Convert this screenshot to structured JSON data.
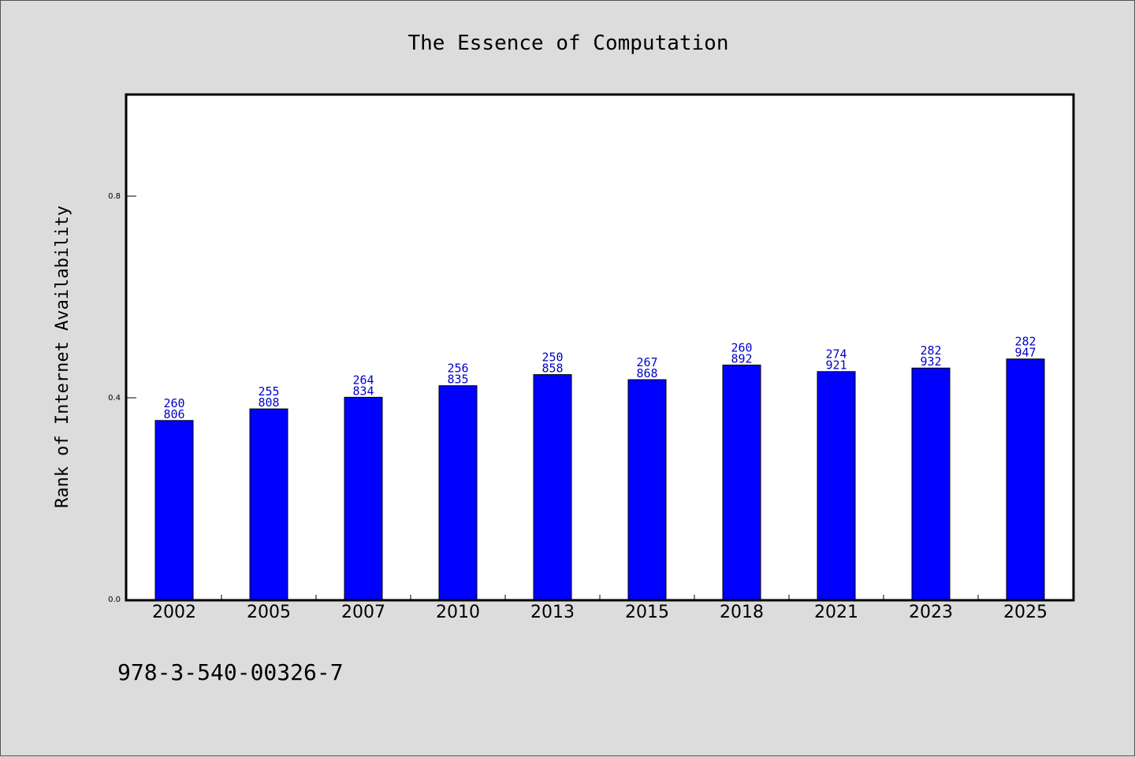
{
  "chart_data": {
    "type": "bar",
    "title": "The Essence of Computation",
    "xlabel": "",
    "ylabel": "Rank of Internet Availability",
    "categories": [
      "2002",
      "2005",
      "2007",
      "2010",
      "2013",
      "2015",
      "2018",
      "2021",
      "2023",
      "2025"
    ],
    "series": [
      {
        "values": [
          0.355,
          0.378,
          0.401,
          0.424,
          0.446,
          0.436,
          0.465,
          0.452,
          0.459,
          0.477
        ]
      }
    ],
    "data_labels": [
      [
        "260",
        "806"
      ],
      [
        "255",
        "808"
      ],
      [
        "264",
        "834"
      ],
      [
        "256",
        "835"
      ],
      [
        "250",
        "858"
      ],
      [
        "267",
        "868"
      ],
      [
        "260",
        "892"
      ],
      [
        "274",
        "921"
      ],
      [
        "282",
        "932"
      ],
      [
        "282",
        "947"
      ]
    ],
    "ylim": [
      0,
      1.0
    ],
    "yticks": [
      "0.0",
      "0.4",
      "0.8"
    ],
    "ytick_values": [
      0,
      0.4,
      0.8
    ],
    "grid": false,
    "legend": "none",
    "bar_color": "#0000ff",
    "label_color": "#0000c8",
    "background_color": "#dcdcdc",
    "footer_text": "978-3-540-00326-7"
  }
}
